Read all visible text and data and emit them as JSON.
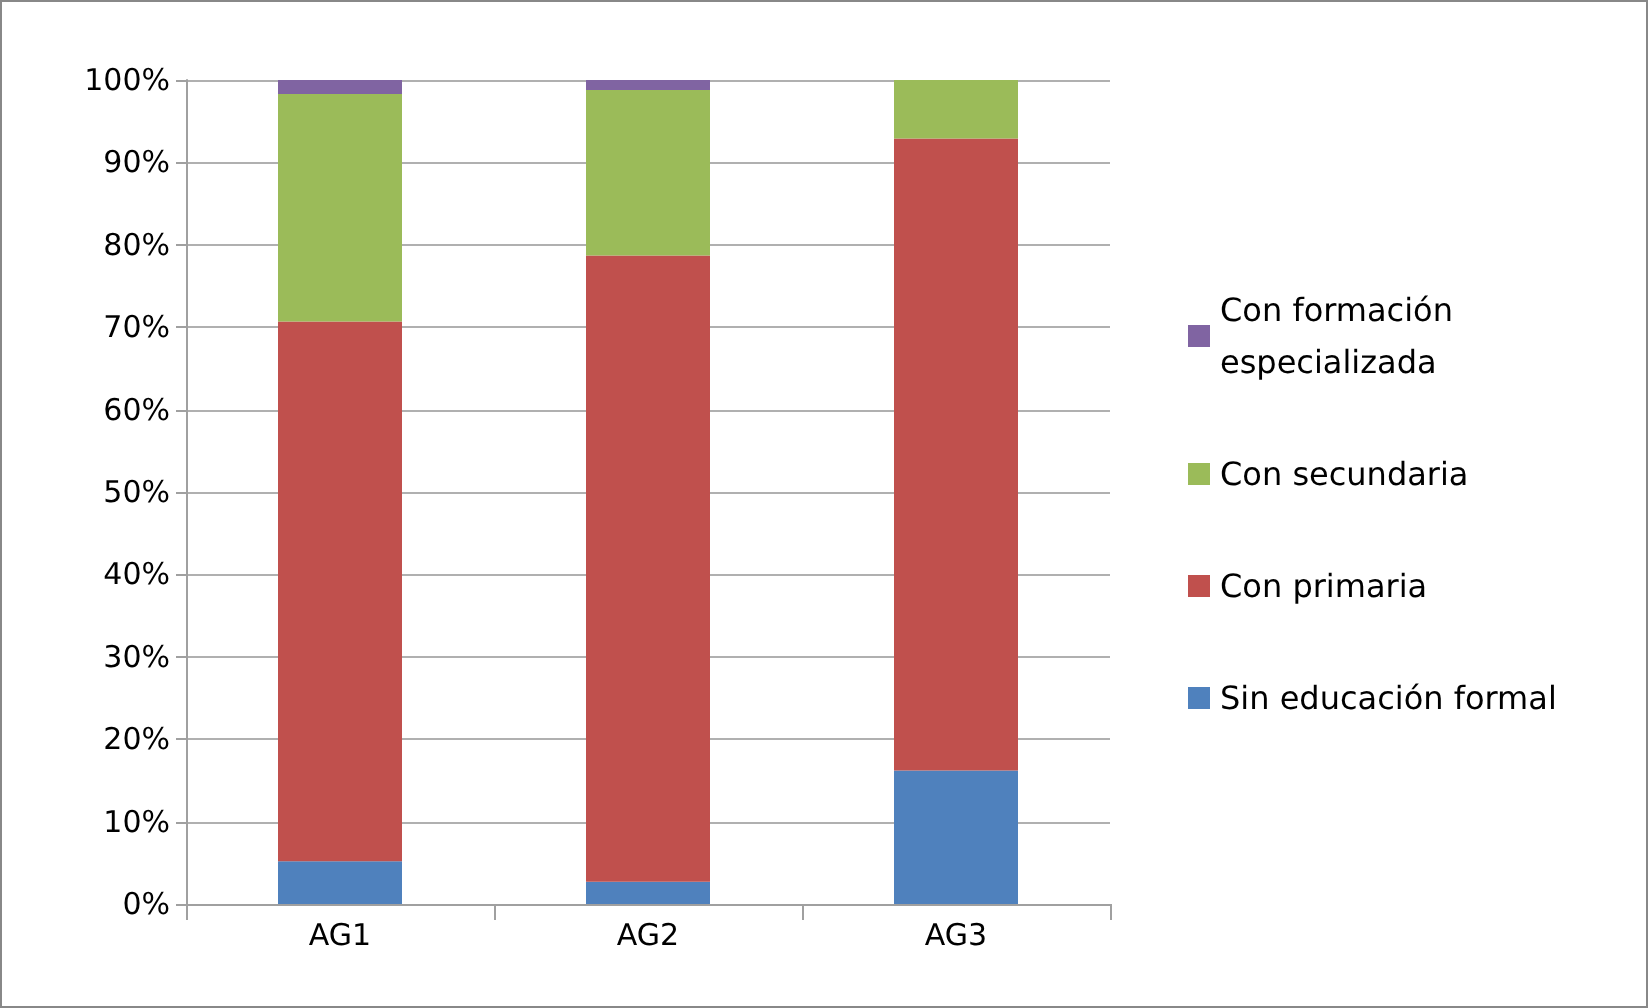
{
  "chart_data": {
    "type": "bar",
    "stacked": true,
    "categories": [
      "AG1",
      "AG2",
      "AG3"
    ],
    "series": [
      {
        "name": "Sin educación formal",
        "color": "#4f81bd",
        "values": [
          5.2,
          2.7,
          16.2
        ]
      },
      {
        "name": "Con primaria",
        "color": "#c0504d",
        "values": [
          65.5,
          76.0,
          76.7
        ]
      },
      {
        "name": "Con secundaria",
        "color": "#9bbb59",
        "values": [
          27.6,
          20.1,
          7.1
        ]
      },
      {
        "name": "Con formación especializada",
        "color": "#8064a2",
        "values": [
          1.7,
          1.2,
          0
        ]
      }
    ],
    "ylim": [
      0,
      100
    ],
    "yticks": [
      {
        "value": 0,
        "label": "0%"
      },
      {
        "value": 10,
        "label": "10%"
      },
      {
        "value": 20,
        "label": "20%"
      },
      {
        "value": 30,
        "label": "30%"
      },
      {
        "value": 40,
        "label": "40%"
      },
      {
        "value": 50,
        "label": "50%"
      },
      {
        "value": 60,
        "label": "60%"
      },
      {
        "value": 70,
        "label": "70%"
      },
      {
        "value": 80,
        "label": "80%"
      },
      {
        "value": 90,
        "label": "90%"
      },
      {
        "value": 100,
        "label": "100%"
      }
    ],
    "grid": "y",
    "legend": "right"
  }
}
